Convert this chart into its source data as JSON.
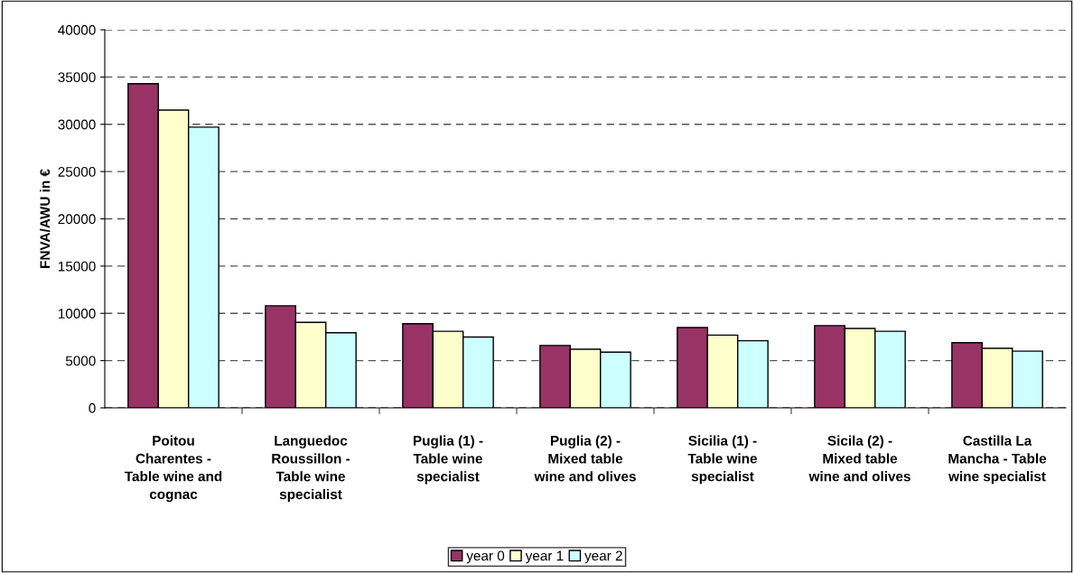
{
  "chart_data": {
    "type": "bar",
    "ylabel": "FNVA/AWU in €",
    "categories": [
      "Poitou\nCharentes -\nTable wine and\ncognac",
      "Languedoc\nRoussillon -\nTable wine\nspecialist",
      "Puglia (1) -\nTable wine\nspecialist",
      "Puglia (2) -\nMixed table\nwine and olives",
      "Sicilia (1) -\nTable wine\nspecialist",
      "Sicila (2) -\nMixed table\nwine and olives",
      "Castilla La\nMancha - Table\nwine specialist"
    ],
    "series": [
      {
        "name": "year 0",
        "color": "#993366",
        "values": [
          34300,
          10800,
          8900,
          6600,
          8500,
          8700,
          6900
        ]
      },
      {
        "name": "year 1",
        "color": "#ffffcc",
        "values": [
          31500,
          9050,
          8100,
          6200,
          7700,
          8400,
          6300
        ]
      },
      {
        "name": "year 2",
        "color": "#ccffff",
        "values": [
          29700,
          7950,
          7500,
          5900,
          7100,
          8100,
          6000
        ]
      }
    ],
    "ylim": [
      0,
      40000
    ],
    "yticks": [
      0,
      5000,
      10000,
      15000,
      20000,
      25000,
      30000,
      35000,
      40000
    ],
    "grid": "y",
    "legend": "bottom"
  }
}
